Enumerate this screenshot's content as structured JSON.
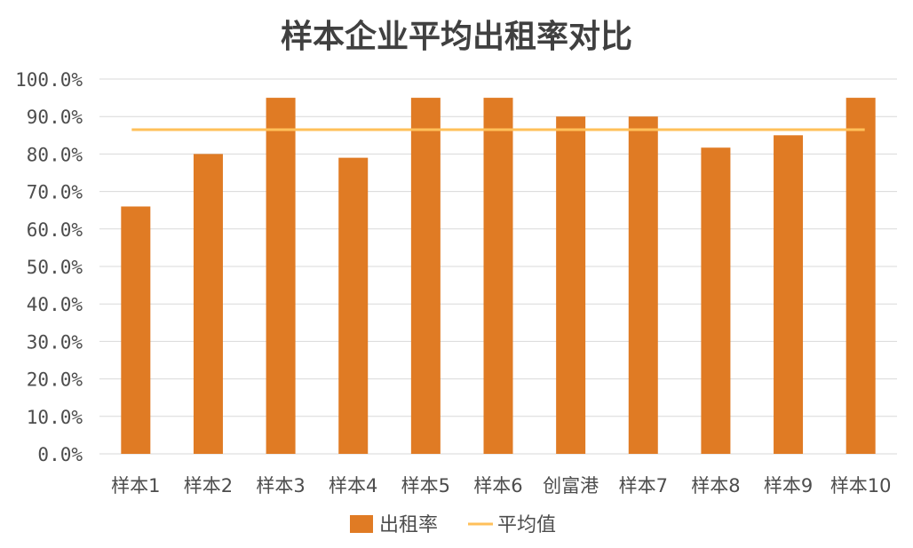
{
  "chart_data": {
    "type": "bar",
    "title": "样本企业平均出租率对比",
    "categories": [
      "样本1",
      "样本2",
      "样本3",
      "样本4",
      "样本5",
      "样本6",
      "创富港",
      "样本7",
      "样本8",
      "样本9",
      "样本10"
    ],
    "series": [
      {
        "name": "出租率",
        "type": "bar",
        "values": [
          66.0,
          80.0,
          95.0,
          79.0,
          95.0,
          95.0,
          90.0,
          90.0,
          81.7,
          85.0,
          95.0
        ],
        "color": "#E07B24"
      },
      {
        "name": "平均值",
        "type": "line",
        "values": [
          86.5,
          86.5,
          86.5,
          86.5,
          86.5,
          86.5,
          86.5,
          86.5,
          86.5,
          86.5,
          86.5
        ],
        "color": "#FFC05A"
      }
    ],
    "ylim": [
      0,
      100
    ],
    "y_ticks": [
      "0.0%",
      "10.0%",
      "20.0%",
      "30.0%",
      "40.0%",
      "50.0%",
      "60.0%",
      "70.0%",
      "80.0%",
      "90.0%",
      "100.0%"
    ],
    "grid": true,
    "legend": "bottom",
    "xlabel": "",
    "ylabel": ""
  }
}
